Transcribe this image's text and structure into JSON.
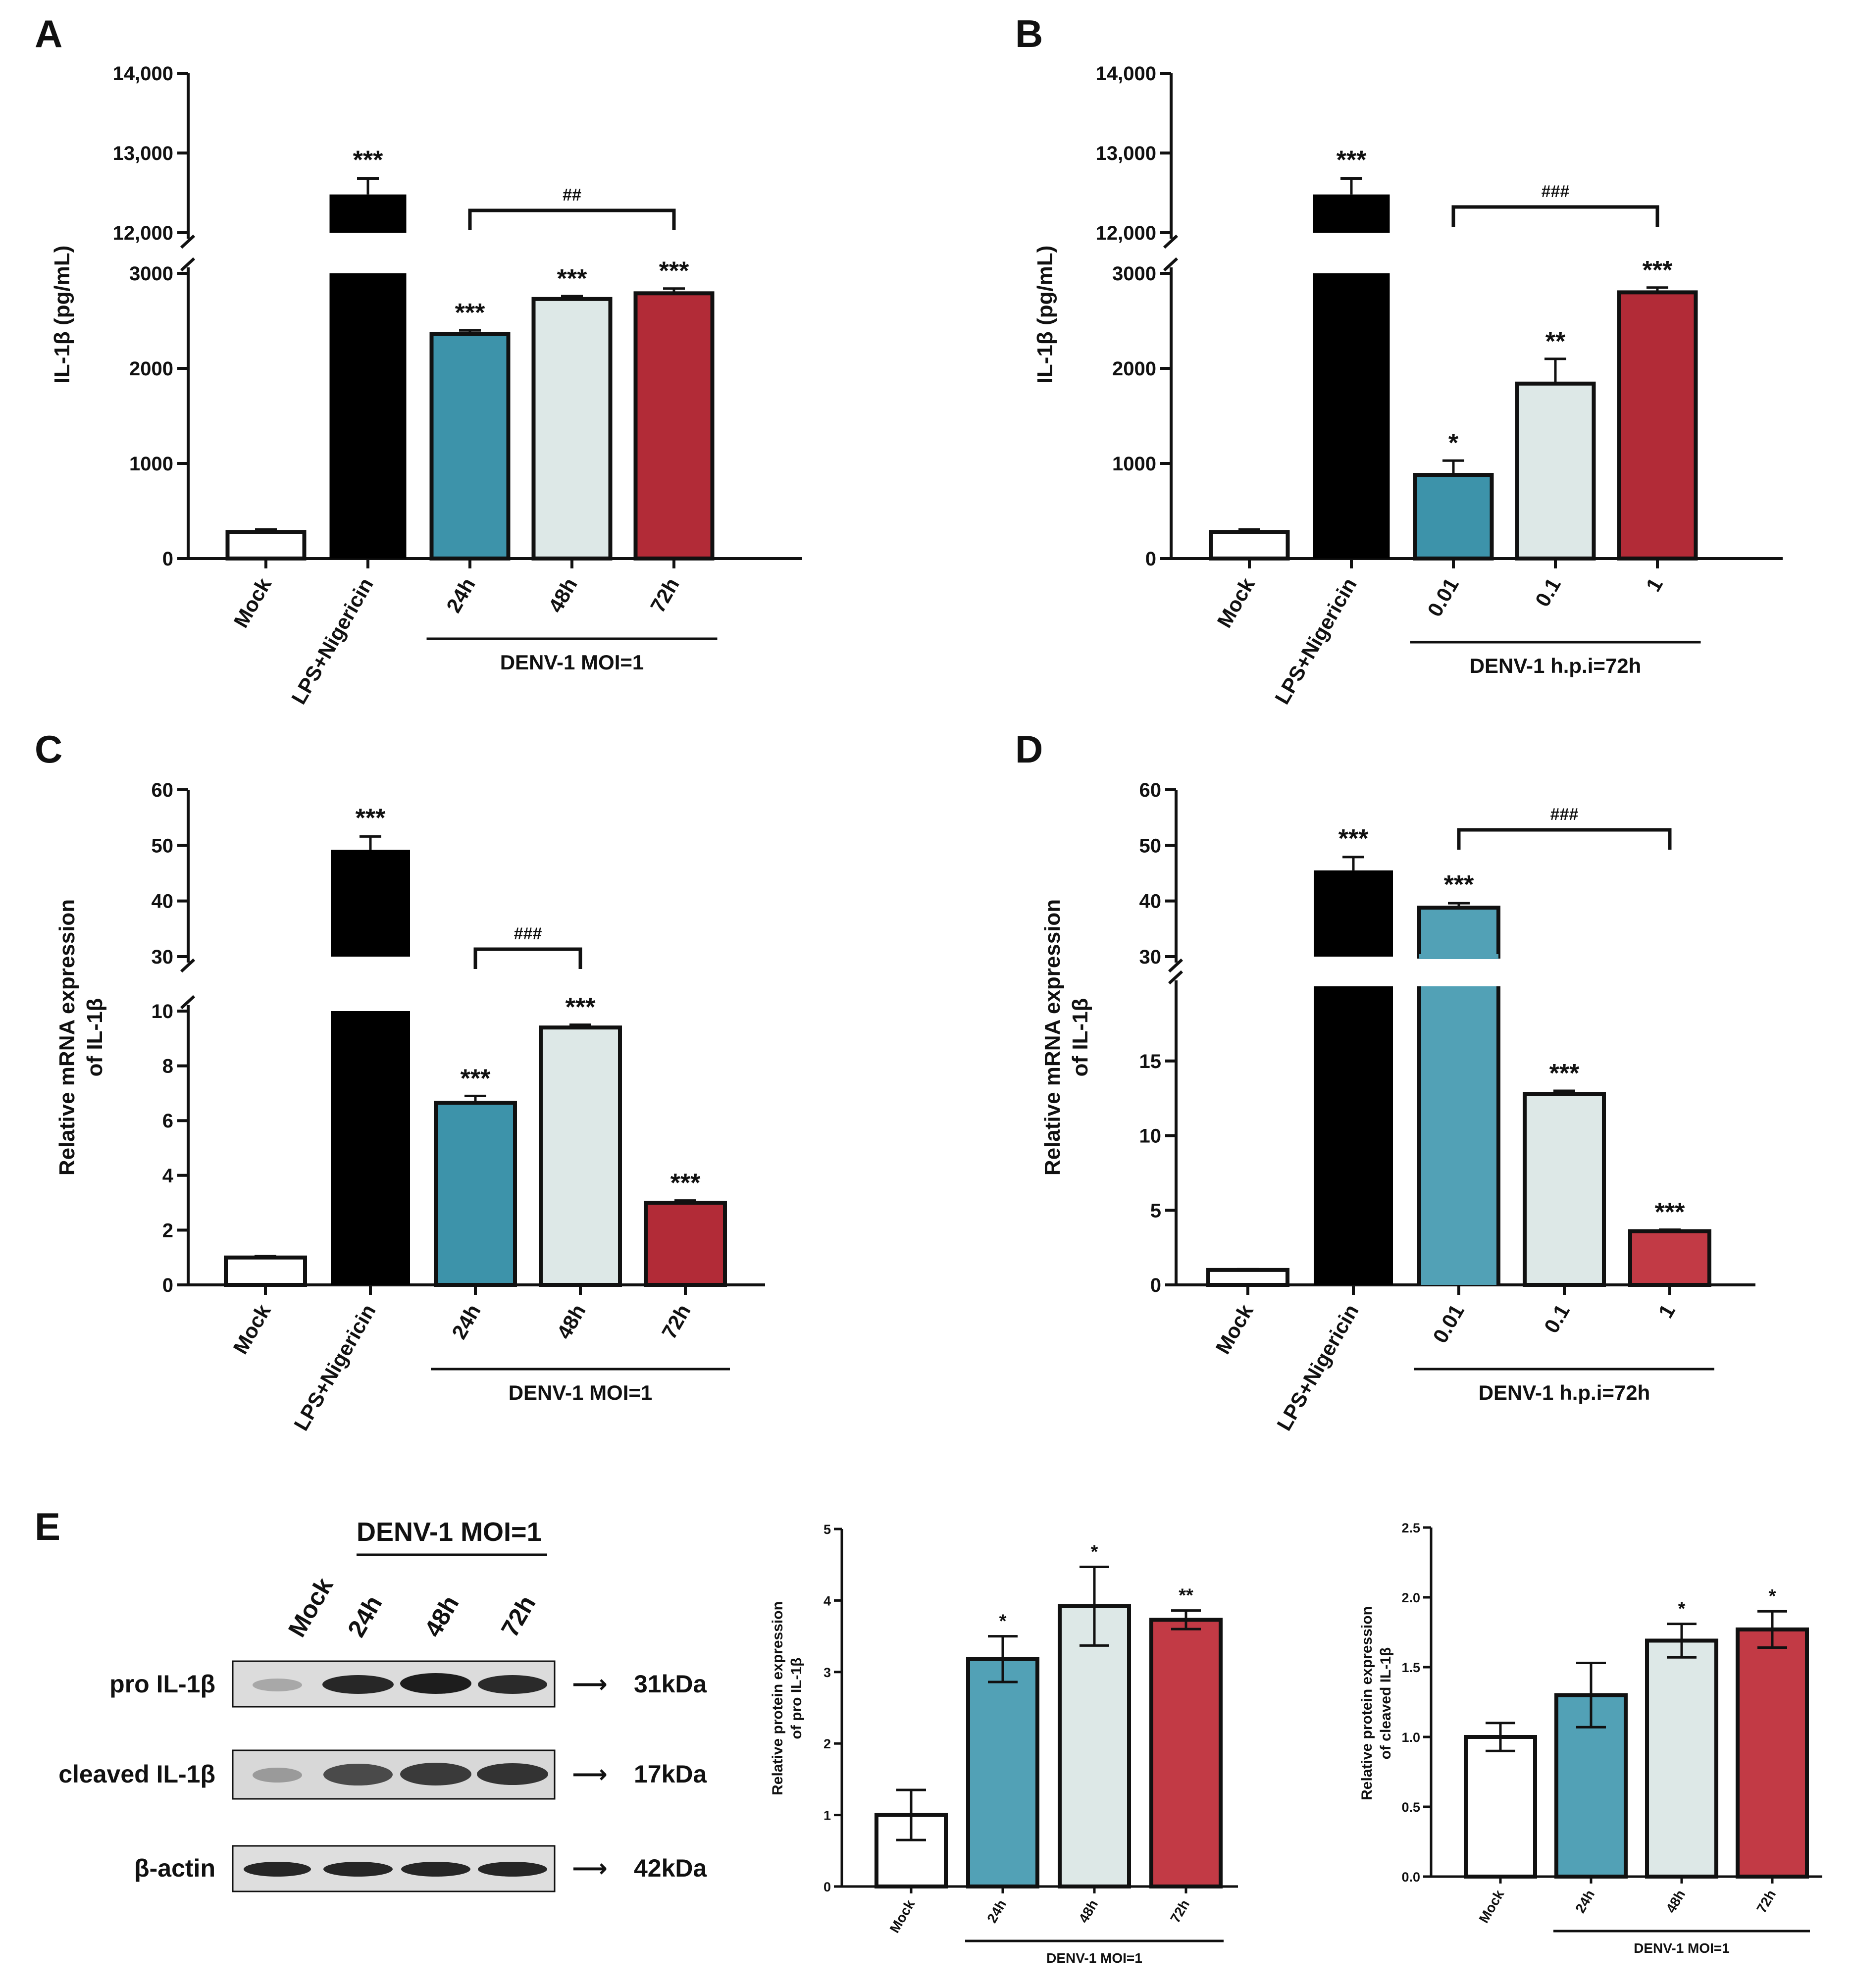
{
  "colors": {
    "mock": "#ffffff",
    "lps": "#000000",
    "teal": "#3d93aa",
    "teal_light": "#52a1b6",
    "pale": "#dde8e7",
    "red": "#b22b37",
    "red_light": "#c23a45"
  },
  "chart_data": [
    {
      "panel": "A",
      "type": "bar",
      "ylabel": "IL-1β (pg/mL)",
      "broken_axis": true,
      "lower_ylim": [
        0,
        3000
      ],
      "lower_ticks": [
        "0",
        "1000",
        "2000",
        "3000"
      ],
      "upper_ylim": [
        12000,
        14000
      ],
      "upper_ticks": [
        "12,000",
        "13,000",
        "14,000"
      ],
      "categories": [
        "Mock",
        "LPS+Nigericin",
        "24h",
        "48h",
        "72h"
      ],
      "values": [
        280,
        12480,
        2360,
        2730,
        2790
      ],
      "errors": [
        25,
        200,
        40,
        30,
        50
      ],
      "significance": [
        "",
        "***",
        "***",
        "***",
        "***"
      ],
      "bracket": {
        "from": 2,
        "to": 4,
        "label": "##"
      },
      "group_label": "DENV-1 MOI=1",
      "group_span": [
        2,
        4
      ]
    },
    {
      "panel": "B",
      "type": "bar",
      "ylabel": "IL-1β (pg/mL)",
      "broken_axis": true,
      "lower_ylim": [
        0,
        3000
      ],
      "lower_ticks": [
        "0",
        "1000",
        "2000",
        "3000"
      ],
      "upper_ylim": [
        12000,
        14000
      ],
      "upper_ticks": [
        "12,000",
        "13,000",
        "14,000"
      ],
      "categories": [
        "Mock",
        "LPS+Nigericin",
        "0.01",
        "0.1",
        "1"
      ],
      "values": [
        280,
        12480,
        880,
        1840,
        2800
      ],
      "errors": [
        25,
        200,
        150,
        260,
        50
      ],
      "significance": [
        "",
        "***",
        "*",
        "**",
        "***"
      ],
      "bracket": {
        "from": 2,
        "to": 4,
        "label": "###"
      },
      "group_label": "DENV-1 h.p.i=72h",
      "group_span": [
        2,
        4
      ]
    },
    {
      "panel": "C",
      "type": "bar",
      "ylabel": "Relative  mRNA expression of IL-1β",
      "broken_axis": true,
      "lower_ylim": [
        0,
        10
      ],
      "lower_ticks": [
        "0",
        "2",
        "4",
        "6",
        "8",
        "10"
      ],
      "upper_ylim": [
        30,
        60
      ],
      "upper_ticks": [
        "30",
        "40",
        "50",
        "60"
      ],
      "categories": [
        "Mock",
        "LPS+Nigericin",
        "24h",
        "48h",
        "72h"
      ],
      "values": [
        1.0,
        49.2,
        6.65,
        9.4,
        3.0
      ],
      "errors": [
        0.05,
        2.4,
        0.25,
        0.1,
        0.08
      ],
      "significance": [
        "",
        "***",
        "***",
        "***",
        "***"
      ],
      "bracket": {
        "from": 2,
        "to": 3,
        "label": "###"
      },
      "group_label": "DENV-1 MOI=1",
      "group_span": [
        2,
        4
      ]
    },
    {
      "panel": "D",
      "type": "bar",
      "ylabel": "Relative  mRNA expression of IL-1β",
      "broken_axis": true,
      "lower_ylim": [
        0,
        20
      ],
      "lower_ticks": [
        "0",
        "5",
        "10",
        "15"
      ],
      "upper_ylim": [
        30,
        60
      ],
      "upper_ticks": [
        "30",
        "40",
        "50",
        "60"
      ],
      "categories": [
        "Mock",
        "LPS+Nigericin",
        "0.01",
        "0.1",
        "1"
      ],
      "values": [
        1.0,
        45.5,
        38.8,
        12.8,
        3.6
      ],
      "errors": [
        0.05,
        2.4,
        0.8,
        0.2,
        0.1
      ],
      "significance": [
        "",
        "***",
        "***",
        "***",
        "***"
      ],
      "bracket": {
        "from": 2,
        "to": 4,
        "label": "###"
      },
      "group_label": "DENV-1 h.p.i=72h",
      "group_span": [
        2,
        4
      ]
    },
    {
      "panel": "E-pro",
      "type": "bar",
      "ylabel": "Relative  protein expression of pro IL-1β",
      "ylim": [
        0,
        5
      ],
      "ticks": [
        "0",
        "1",
        "2",
        "3",
        "4",
        "5"
      ],
      "categories": [
        "Mock",
        "24h",
        "48h",
        "72h"
      ],
      "values": [
        1.0,
        3.18,
        3.92,
        3.73
      ],
      "errors": [
        0.35,
        0.32,
        0.55,
        0.13
      ],
      "significance": [
        "",
        "*",
        "*",
        "**"
      ],
      "group_label": "DENV-1 MOI=1",
      "group_span": [
        1,
        3
      ]
    },
    {
      "panel": "E-cleaved",
      "type": "bar",
      "ylabel": "Relative  protein expression of cleaved IL-1β",
      "ylim": [
        0,
        2.5
      ],
      "ticks": [
        "0.0",
        "0.5",
        "1.0",
        "1.5",
        "2.0",
        "2.5"
      ],
      "categories": [
        "Mock",
        "24h",
        "48h",
        "72h"
      ],
      "values": [
        1.0,
        1.3,
        1.69,
        1.77
      ],
      "errors": [
        0.1,
        0.23,
        0.12,
        0.13
      ],
      "significance": [
        "",
        "",
        "*",
        "*"
      ],
      "group_label": "DENV-1 MOI=1",
      "group_span": [
        1,
        3
      ]
    }
  ],
  "panels": {
    "a": "A",
    "b": "B",
    "c": "C",
    "d": "D",
    "e": "E"
  },
  "blot": {
    "header": "DENV-1 MOI=1",
    "lanes": [
      "Mock",
      "24h",
      "48h",
      "72h"
    ],
    "rows": [
      {
        "label": "pro IL-1β",
        "size": "31kDa"
      },
      {
        "label": "cleaved IL-1β",
        "size": "17kDa"
      },
      {
        "label": "β-actin",
        "size": "42kDa"
      }
    ]
  }
}
